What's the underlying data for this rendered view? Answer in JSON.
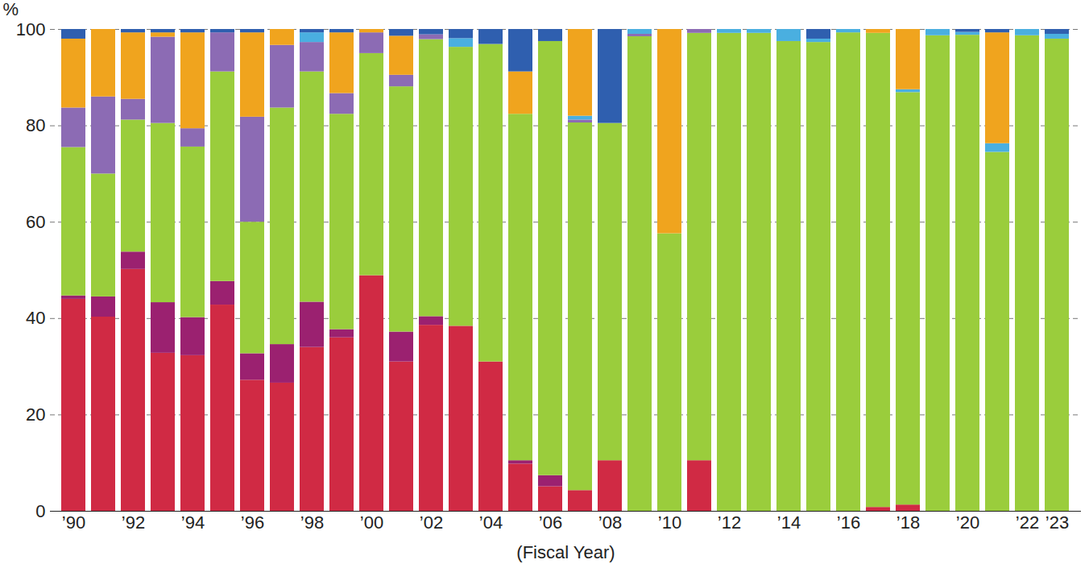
{
  "chart_data": {
    "type": "bar",
    "stacked": true,
    "grid": true,
    "x_label": "(Fiscal Year)",
    "y_label": "%",
    "categories": [
      "’90",
      null,
      "’92",
      null,
      "’94",
      null,
      "’96",
      null,
      "’98",
      null,
      "’00",
      null,
      "’02",
      null,
      "’04",
      null,
      "’06",
      null,
      "’08",
      null,
      "’10",
      null,
      "’12",
      null,
      "’14",
      null,
      "’16",
      null,
      "’18",
      null,
      "’20",
      null,
      "’22",
      "’23"
    ],
    "ylim": [
      0,
      100
    ],
    "yticks": [
      0,
      20,
      40,
      60,
      80,
      100
    ],
    "series": [
      {
        "color": "#d02a44",
        "values": [
          44,
          40.3,
          50.2,
          32.8,
          32.3,
          42.8,
          27.2,
          26.6,
          34,
          36,
          48.9,
          31,
          38.6,
          38.4,
          31,
          9.8,
          5.1,
          4.3,
          10.5,
          0,
          0,
          10.5,
          0,
          0,
          0,
          0,
          0,
          0.8,
          1.3,
          0,
          0,
          0,
          0,
          0
        ]
      },
      {
        "color": "#9b2170",
        "values": [
          0.7,
          4.2,
          3.6,
          10.5,
          7.9,
          4.9,
          5.5,
          8,
          9.4,
          1.7,
          0,
          6.2,
          1.8,
          0,
          0,
          0.7,
          2.3,
          0,
          0,
          0,
          0,
          0,
          0,
          0,
          0,
          0,
          0,
          0,
          0,
          0,
          0,
          0,
          0,
          0
        ]
      },
      {
        "color": "#9acd3c",
        "values": [
          30.8,
          25.5,
          27.4,
          37.2,
          35.4,
          43.5,
          27.3,
          49.1,
          47.8,
          44.7,
          46.1,
          50.9,
          57.5,
          57.9,
          65.9,
          71.9,
          90.1,
          76.3,
          70,
          98.5,
          57.6,
          88.7,
          99.2,
          99.2,
          97.5,
          97.3,
          99.3,
          98.4,
          85.6,
          98.7,
          98.8,
          74.5,
          98.7,
          98
        ]
      },
      {
        "color": "#8c6bb4",
        "values": [
          8.2,
          16,
          4.3,
          17.9,
          3.8,
          8.1,
          21.8,
          13,
          6.1,
          4.3,
          4.3,
          2.4,
          1,
          0,
          0,
          0,
          0,
          0.6,
          0,
          0.5,
          0,
          0.8,
          0,
          0,
          0,
          0,
          0,
          0,
          0,
          0,
          0,
          0,
          0,
          0
        ]
      },
      {
        "color": "#4aafe0",
        "values": [
          0,
          0,
          0,
          0,
          0,
          0,
          0,
          0,
          2,
          0,
          0,
          0,
          0,
          1.8,
          0,
          0,
          0,
          0.8,
          0,
          1,
          0,
          0,
          0.8,
          0.8,
          2.5,
          0.7,
          0.7,
          0,
          0.6,
          1.3,
          0.6,
          1.8,
          1.3,
          1
        ]
      },
      {
        "color": "#f0a41e",
        "values": [
          14.3,
          14,
          13.8,
          0.9,
          19.9,
          0,
          17.5,
          3.3,
          0,
          12.6,
          0.7,
          8.1,
          0,
          0,
          0,
          8.8,
          0,
          18,
          0,
          0,
          42.4,
          0,
          0,
          0,
          0,
          0,
          0,
          0.8,
          12.5,
          0,
          0,
          23,
          0,
          0
        ]
      },
      {
        "color": "#2f5faf",
        "values": [
          2,
          0,
          0.7,
          0.7,
          0.7,
          0.7,
          0.7,
          0,
          0.7,
          0.7,
          0,
          1.4,
          1.1,
          1.9,
          3.1,
          8.8,
          2.5,
          0,
          19.5,
          0,
          0,
          0,
          0,
          0,
          0,
          2,
          0,
          0,
          0,
          0,
          0.6,
          0.7,
          0,
          1
        ]
      }
    ]
  }
}
